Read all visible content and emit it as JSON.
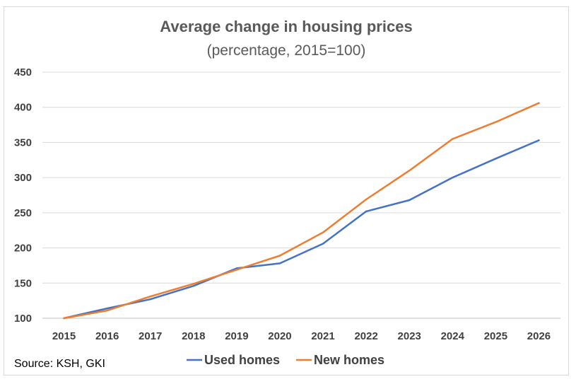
{
  "chart_data": {
    "type": "line",
    "title": "Average change in housing prices",
    "subtitle": "(percentage, 2015=100)",
    "x": [
      "2015",
      "2016",
      "2017",
      "2018",
      "2019",
      "2020",
      "2021",
      "2022",
      "2023",
      "2024",
      "2025",
      "2026"
    ],
    "ylim": [
      100,
      450
    ],
    "yticks": [
      100,
      150,
      200,
      250,
      300,
      350,
      400,
      450
    ],
    "grid": true,
    "legend_position": "bottom",
    "series": [
      {
        "name": "Used homes",
        "color": "#4472c4",
        "values": [
          100,
          114,
          127,
          146,
          171,
          178,
          206,
          252,
          268,
          300,
          327,
          353
        ]
      },
      {
        "name": "New homes",
        "color": "#ed7d31",
        "values": [
          100,
          111,
          131,
          149,
          169,
          189,
          222,
          269,
          310,
          355,
          379,
          406
        ]
      }
    ]
  },
  "source": "Source: KSH, GKI"
}
